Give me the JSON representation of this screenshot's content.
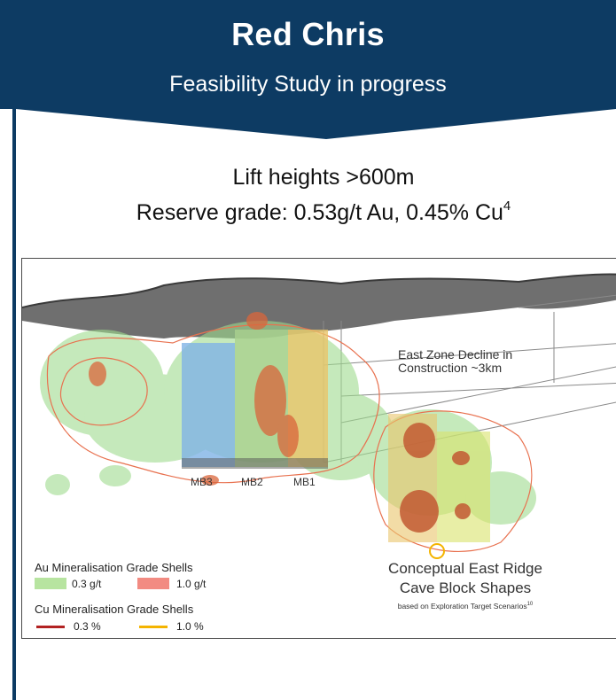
{
  "header": {
    "title": "Red Chris",
    "subtitle": "Feasibility Study in progress",
    "background_color": "#0d3b63"
  },
  "stats": {
    "lift_heights": "Lift heights >600m",
    "reserve_grade": "Reserve grade: 0.53g/t Au, 0.45% Cu",
    "reserve_footnote": "4"
  },
  "figure": {
    "decline_label_line1": "East Zone Decline in",
    "decline_label_line2": "Construction ~3km",
    "block_labels": [
      "MB3",
      "MB2",
      "MB1"
    ],
    "concept_line1": "Conceptual East Ridge",
    "concept_line2": "Cave Block Shapes",
    "concept_note": "based on Exploration Target Scenarios",
    "concept_note_footnote": "10"
  },
  "legend": {
    "au_title": "Au Mineralisation Grade Shells",
    "au_items": [
      {
        "label": "0.3 g/t",
        "color": "#b7e4a0"
      },
      {
        "label": "1.0 g/t",
        "color": "#f28b82"
      }
    ],
    "cu_title": "Cu Mineralisation Grade Shells",
    "cu_items": [
      {
        "label": "0.3 %",
        "color": "#b22222"
      },
      {
        "label": "1.0 %",
        "color": "#f4b400"
      }
    ]
  }
}
